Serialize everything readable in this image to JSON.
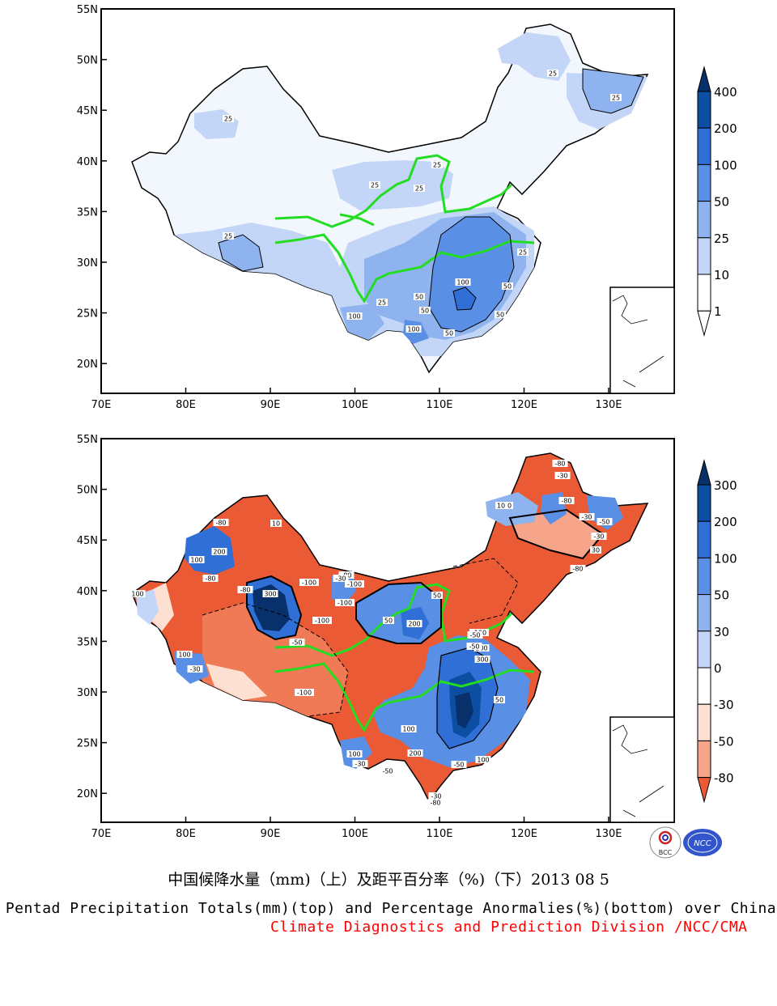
{
  "top_map": {
    "lat_ticks": [
      "55N",
      "50N",
      "45N",
      "40N",
      "35N",
      "30N",
      "25N",
      "20N"
    ],
    "lon_ticks": [
      "70E",
      "80E",
      "90E",
      "100E",
      "110E",
      "120E",
      "130E"
    ],
    "contour_labels": [
      "25",
      "25",
      "25",
      "25",
      "25",
      "25",
      "25",
      "25",
      "25",
      "50",
      "50",
      "50",
      "50",
      "50",
      "100",
      "100",
      "100"
    ],
    "legend": {
      "labels": [
        "400",
        "200",
        "100",
        "50",
        "25",
        "10",
        "1"
      ],
      "colors": [
        "#08306b",
        "#0b4ea2",
        "#2f6fd6",
        "#5a8fe6",
        "#8fb3ef",
        "#c3d6f7",
        "#ffffff"
      ],
      "tip_colors": [
        "#08306b",
        "#ffffff"
      ]
    }
  },
  "bottom_map": {
    "lat_ticks": [
      "55N",
      "50N",
      "45N",
      "40N",
      "35N",
      "30N",
      "25N",
      "20N"
    ],
    "lon_ticks": [
      "70E",
      "80E",
      "90E",
      "100E",
      "110E",
      "120E",
      "130E"
    ],
    "contour_labels": [
      "-80",
      "-30",
      "10",
      "10",
      "10",
      "-50",
      "-80",
      "200",
      "100",
      "-30",
      "-80",
      "300",
      "-100",
      "-80",
      "-30",
      "100",
      "-80",
      "-100",
      "-50",
      "200",
      "50",
      "-100",
      "-100",
      "-50",
      "100",
      "-30",
      "-100",
      "200",
      "300",
      "50",
      "100",
      "100",
      "200",
      "-50",
      "-50",
      "-30",
      "-80",
      "-30",
      "30",
      "-100",
      "-80",
      "100",
      "-50",
      "50",
      "-80",
      "-30"
    ],
    "legend": {
      "labels": [
        "300",
        "200",
        "100",
        "50",
        "30",
        "0",
        "-30",
        "-50",
        "-80"
      ],
      "colors": [
        "#08306b",
        "#0b4ea2",
        "#2f6fd6",
        "#5a8fe6",
        "#8fb3ef",
        "#c3d6f7",
        "#ffffff",
        "#fde0d2",
        "#f6a58a",
        "#f07a55",
        "#ea5a35"
      ],
      "tip_colors": [
        "#08306b",
        "#ea5a35"
      ]
    }
  },
  "captions": {
    "title_cn": "中国候降水量（mm)（上）及距平百分率（%)（下）2013 08 5",
    "title_en": "Pentad Precipitation Totals(mm)(top) and Percentage Anormalies(%)(bottom) over China",
    "org": "Climate Diagnostics and Prediction Division /NCC/CMA"
  },
  "logos": {
    "left": "BCC",
    "right": "NCC"
  }
}
